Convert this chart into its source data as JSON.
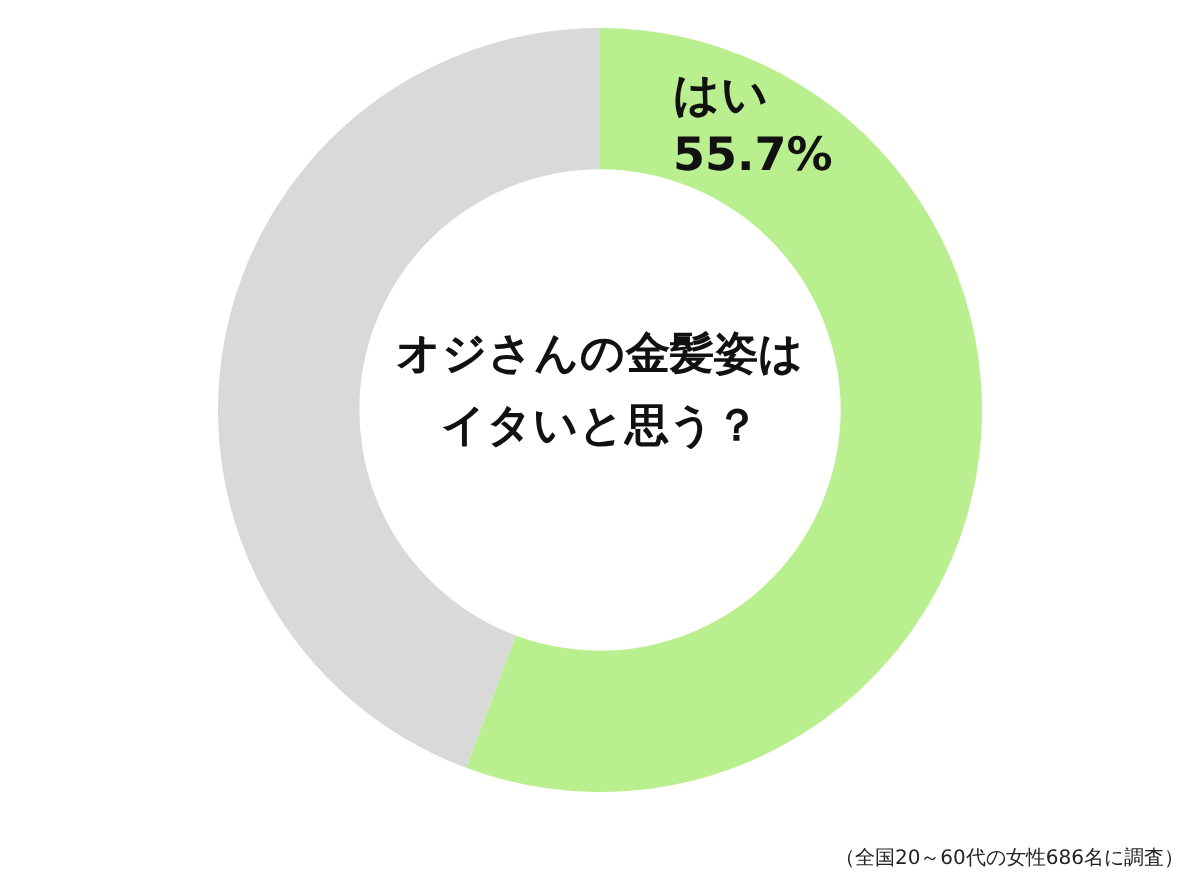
{
  "chart_data": {
    "type": "donut",
    "title": "オジさんの金髪姿はイタいと思う？",
    "categories": [
      "はい",
      null
    ],
    "values": [
      55.7,
      44.3
    ],
    "value_labels": [
      "55.7%",
      null
    ],
    "colors": [
      "#b9ef8f",
      "#d9d9d9"
    ],
    "legend": false,
    "annotations": [
      "（全国20～60代の女性686名に調査）"
    ]
  }
}
